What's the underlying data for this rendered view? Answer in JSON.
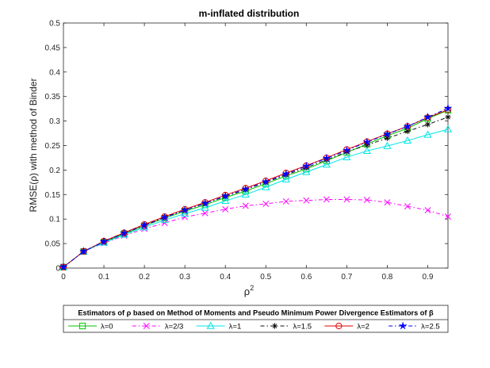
{
  "chart_data": {
    "type": "line",
    "title": "m-inflated distribution",
    "xlabel": "ρ",
    "xlabel_superscript": "2",
    "ylabel": "RMSE(ρ) with method of Binder",
    "xlim": [
      0,
      0.95
    ],
    "ylim": [
      0,
      0.5
    ],
    "xticks": [
      0,
      0.1,
      0.2,
      0.3,
      0.4,
      0.5,
      0.6,
      0.7,
      0.8,
      0.9
    ],
    "xtick_labels": [
      "0",
      "0.1",
      "0.2",
      "0.3",
      "0.4",
      "0.5",
      "0.6",
      "0.7",
      "0.8",
      "0.9"
    ],
    "yticks": [
      0,
      0.05,
      0.1,
      0.15,
      0.2,
      0.25,
      0.3,
      0.35,
      0.4,
      0.45,
      0.5
    ],
    "ytick_labels": [
      "0",
      "0.05",
      "0.1",
      "0.15",
      "0.2",
      "0.25",
      "0.3",
      "0.35",
      "0.4",
      "0.45",
      "0.5"
    ],
    "grid": false,
    "x": [
      0,
      0.05,
      0.1,
      0.15,
      0.2,
      0.25,
      0.3,
      0.35,
      0.4,
      0.45,
      0.5,
      0.55,
      0.6,
      0.65,
      0.7,
      0.75,
      0.8,
      0.85,
      0.9,
      0.95
    ],
    "legend_title": "Estimators of ρ based on Method of Moments and Pseudo Minimum Power Divergence Estimators of β",
    "legend_position": "bottom",
    "series": [
      {
        "name": "λ=0",
        "color": "#00c800",
        "dash": "",
        "marker": "square",
        "values": [
          0.002,
          0.034,
          0.053,
          0.07,
          0.086,
          0.102,
          0.116,
          0.129,
          0.144,
          0.157,
          0.172,
          0.188,
          0.202,
          0.219,
          0.236,
          0.253,
          0.27,
          0.285,
          0.305,
          0.322
        ]
      },
      {
        "name": "λ=2/3",
        "color": "#ff00ff",
        "dash": "5,3,1.5,3",
        "marker": "x",
        "values": [
          0.002,
          0.034,
          0.051,
          0.066,
          0.08,
          0.092,
          0.104,
          0.112,
          0.12,
          0.127,
          0.131,
          0.136,
          0.138,
          0.14,
          0.14,
          0.139,
          0.134,
          0.126,
          0.118,
          0.105
        ]
      },
      {
        "name": "λ=1",
        "color": "#00e5e5",
        "dash": "",
        "marker": "triangle",
        "values": [
          0.002,
          0.034,
          0.052,
          0.068,
          0.083,
          0.098,
          0.111,
          0.123,
          0.137,
          0.15,
          0.165,
          0.181,
          0.196,
          0.211,
          0.226,
          0.239,
          0.249,
          0.26,
          0.272,
          0.283
        ]
      },
      {
        "name": "λ=1.5",
        "color": "#111111",
        "dash": "5,3,1.5,3",
        "marker": "asterisk",
        "values": [
          0.002,
          0.034,
          0.054,
          0.071,
          0.088,
          0.104,
          0.118,
          0.132,
          0.146,
          0.16,
          0.175,
          0.19,
          0.205,
          0.221,
          0.237,
          0.251,
          0.265,
          0.279,
          0.293,
          0.308
        ]
      },
      {
        "name": "λ=2",
        "color": "#e00000",
        "dash": "",
        "marker": "circle",
        "values": [
          0.002,
          0.034,
          0.055,
          0.072,
          0.089,
          0.105,
          0.12,
          0.134,
          0.149,
          0.163,
          0.178,
          0.194,
          0.209,
          0.225,
          0.242,
          0.258,
          0.274,
          0.289,
          0.307,
          0.323
        ]
      },
      {
        "name": "λ=2.5",
        "color": "#0000ff",
        "dash": "5,3,1.5,3",
        "marker": "star",
        "values": [
          0.002,
          0.034,
          0.054,
          0.071,
          0.087,
          0.103,
          0.118,
          0.132,
          0.147,
          0.161,
          0.176,
          0.192,
          0.208,
          0.224,
          0.24,
          0.257,
          0.273,
          0.289,
          0.308,
          0.326
        ]
      }
    ]
  }
}
